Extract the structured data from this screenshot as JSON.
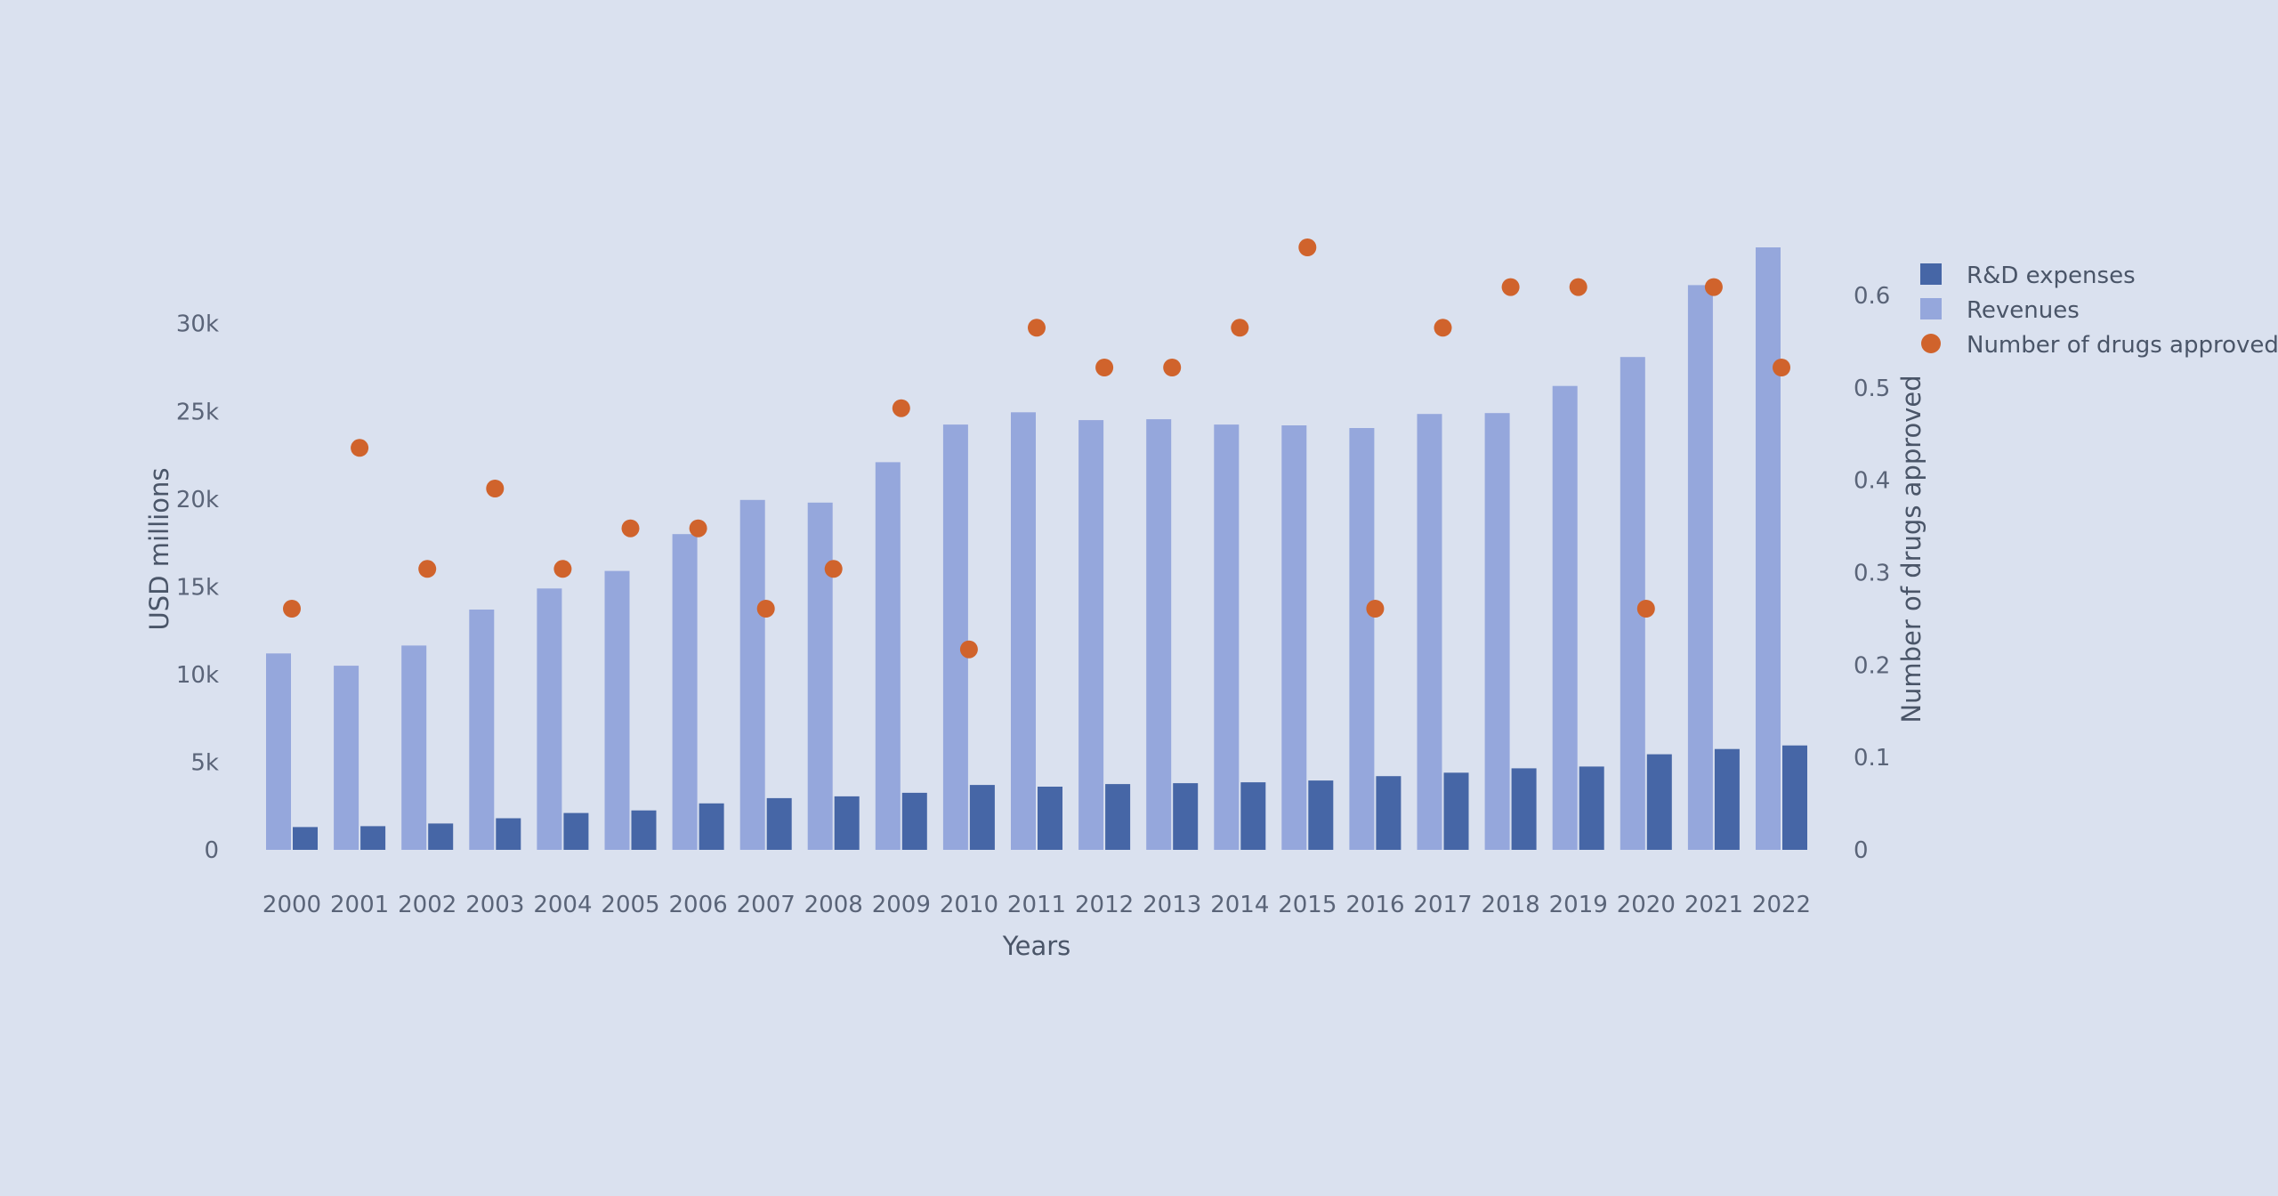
{
  "chart_data": {
    "type": "bar",
    "categories": [
      "2000",
      "2001",
      "2002",
      "2003",
      "2004",
      "2005",
      "2006",
      "2007",
      "2008",
      "2009",
      "2010",
      "2011",
      "2012",
      "2013",
      "2014",
      "2015",
      "2016",
      "2017",
      "2018",
      "2019",
      "2020",
      "2021",
      "2022"
    ],
    "series": [
      {
        "name": "R&D expenses",
        "type": "bar",
        "axis": "left",
        "color": "#4666a6",
        "values": [
          1300,
          1350,
          1500,
          1800,
          2100,
          2250,
          2650,
          2950,
          3050,
          3250,
          3700,
          3600,
          3750,
          3800,
          3850,
          3950,
          4200,
          4400,
          4650,
          4750,
          5450,
          5750,
          5950
        ]
      },
      {
        "name": "Revenues",
        "type": "bar",
        "axis": "left",
        "color": "#95a7dc",
        "values": [
          11200,
          10500,
          11650,
          13700,
          14900,
          15900,
          18000,
          19950,
          19800,
          22100,
          24250,
          24950,
          24500,
          24550,
          24250,
          24200,
          24050,
          24850,
          24900,
          26450,
          28100,
          32200,
          34350
        ]
      },
      {
        "name": "Number of drugs approved",
        "type": "scatter",
        "axis": "right",
        "color": "#d0632c",
        "values": [
          0.261,
          0.435,
          0.304,
          0.391,
          0.304,
          0.348,
          0.348,
          0.261,
          0.304,
          0.478,
          0.217,
          0.565,
          0.522,
          0.522,
          0.565,
          0.652,
          0.261,
          0.565,
          0.609,
          0.609,
          0.261,
          0.609,
          0.522
        ]
      }
    ],
    "xlabel": "Years",
    "ylabel": "USD millions",
    "y2label": "Number of drugs approved",
    "ylim": [
      0,
      34350
    ],
    "y2lim": [
      0,
      0.652
    ],
    "yticks": [
      {
        "value": 0,
        "label": "0"
      },
      {
        "value": 5000,
        "label": "5k"
      },
      {
        "value": 10000,
        "label": "10k"
      },
      {
        "value": 15000,
        "label": "15k"
      },
      {
        "value": 20000,
        "label": "20k"
      },
      {
        "value": 25000,
        "label": "25k"
      },
      {
        "value": 30000,
        "label": "30k"
      }
    ],
    "y2ticks": [
      {
        "value": 0,
        "label": "0"
      },
      {
        "value": 0.1,
        "label": "0.1"
      },
      {
        "value": 0.2,
        "label": "0.2"
      },
      {
        "value": 0.3,
        "label": "0.3"
      },
      {
        "value": 0.4,
        "label": "0.4"
      },
      {
        "value": 0.5,
        "label": "0.5"
      },
      {
        "value": 0.6,
        "label": "0.6"
      }
    ],
    "grid": false,
    "legend": "top-right"
  }
}
